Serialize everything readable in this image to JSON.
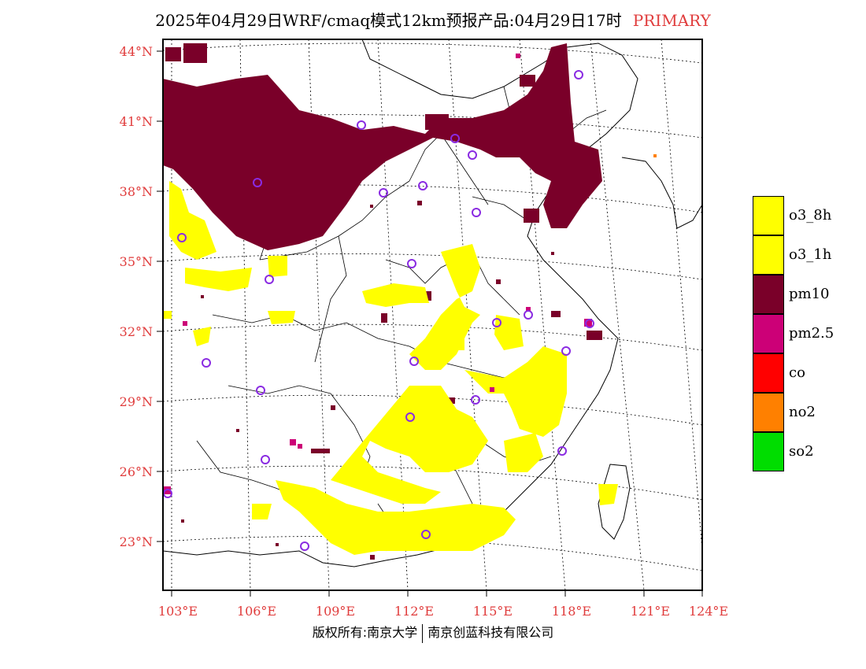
{
  "header": {
    "title": "2025年04月29日WRF/cmaq模式12km预报产品:04月29日17时",
    "tag": "PRIMARY"
  },
  "axes": {
    "lat_labels": [
      "44°N",
      "41°N",
      "38°N",
      "35°N",
      "32°N",
      "29°N",
      "26°N",
      "23°N"
    ],
    "lon_labels": [
      "103°E",
      "106°E",
      "109°E",
      "112°E",
      "115°E",
      "118°E",
      "121°E",
      "124°E"
    ]
  },
  "legend": {
    "items": [
      {
        "label": "o3_8h",
        "color": "#ffff00"
      },
      {
        "label": "o3_1h",
        "color": "#ffff00"
      },
      {
        "label": "pm10",
        "color": "#7a0029"
      },
      {
        "label": "pm2.5",
        "color": "#cc0077"
      },
      {
        "label": "co",
        "color": "#ff0000"
      },
      {
        "label": "no2",
        "color": "#ff8000"
      },
      {
        "label": "so2",
        "color": "#00dd00"
      }
    ]
  },
  "footer": {
    "left": "版权所有:南京大学",
    "right": "南京创蓝科技有限公司"
  },
  "colors": {
    "o3": "#ffff00",
    "pm10": "#7a0029",
    "pm25": "#cc0077",
    "station": "#8a2be2",
    "tick_text": "#e03c3c"
  }
}
